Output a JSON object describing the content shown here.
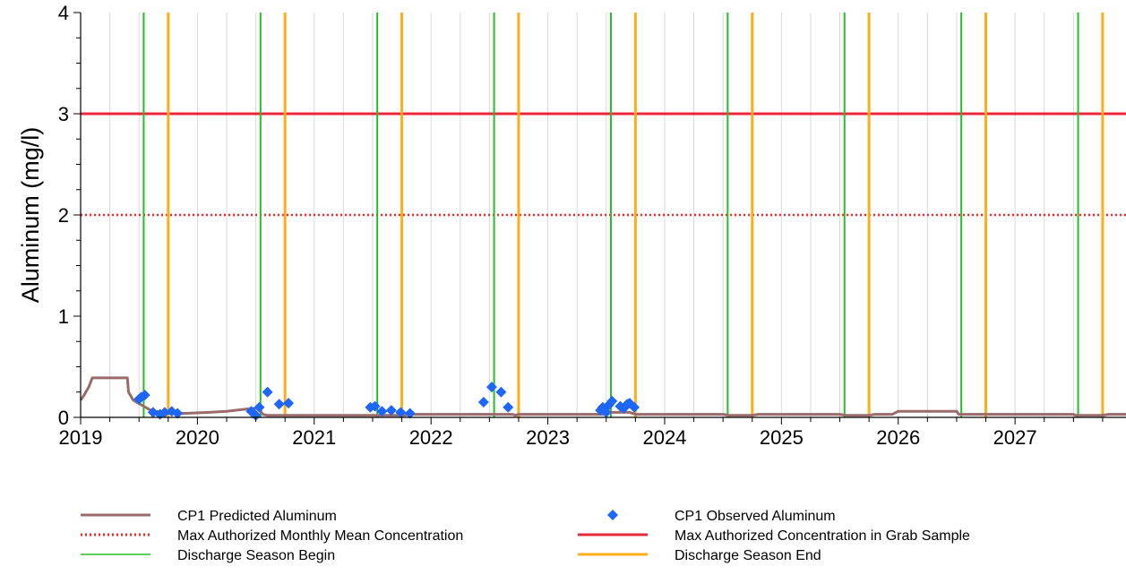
{
  "chart_data": {
    "type": "line",
    "title": "",
    "xlabel": "",
    "ylabel": "Aluminum (mg/l)",
    "xlim": [
      2019.0,
      2027.95
    ],
    "ylim": [
      0,
      4
    ],
    "x_ticks": [
      2019,
      2020,
      2021,
      2022,
      2023,
      2024,
      2025,
      2026,
      2027
    ],
    "x_tick_labels": [
      "2019",
      "2020",
      "2021",
      "2022",
      "2023",
      "2024",
      "2025",
      "2026",
      "2027"
    ],
    "y_ticks": [
      0,
      1,
      2,
      3,
      4
    ],
    "y_tick_labels": [
      "0",
      "1",
      "2",
      "3",
      "4"
    ],
    "grid": true,
    "legend_position": "bottom",
    "colors": {
      "predicted": "#9b6b6b",
      "observed": "#1e66f5",
      "monthly_mean": "#ff2020",
      "grab_sample": "#e8283a",
      "season_begin": "#22c022",
      "season_end": "#ffad1a",
      "grid": "#d9d9d9"
    },
    "series": [
      {
        "name": "CP1 Predicted Aluminum",
        "kind": "line",
        "color_key": "predicted",
        "points": [
          [
            2019.0,
            0.17
          ],
          [
            2019.03,
            0.22
          ],
          [
            2019.07,
            0.3
          ],
          [
            2019.1,
            0.39
          ],
          [
            2019.4,
            0.39
          ],
          [
            2019.41,
            0.25
          ],
          [
            2019.45,
            0.17
          ],
          [
            2019.6,
            0.07
          ],
          [
            2019.75,
            0.04
          ],
          [
            2019.9,
            0.04
          ],
          [
            2020.1,
            0.05
          ],
          [
            2020.25,
            0.06
          ],
          [
            2020.4,
            0.08
          ],
          [
            2020.5,
            0.09
          ],
          [
            2020.52,
            0.1
          ],
          [
            2020.56,
            0.03
          ],
          [
            2020.6,
            0.02
          ],
          [
            2021.0,
            0.02
          ],
          [
            2021.5,
            0.02
          ],
          [
            2021.78,
            0.02
          ],
          [
            2021.8,
            0.03
          ],
          [
            2022.0,
            0.03
          ],
          [
            2022.7,
            0.03
          ],
          [
            2022.72,
            0.02
          ],
          [
            2022.75,
            0.03
          ],
          [
            2023.5,
            0.03
          ],
          [
            2023.52,
            0.05
          ],
          [
            2023.7,
            0.05
          ],
          [
            2023.75,
            0.03
          ],
          [
            2024.5,
            0.03
          ],
          [
            2024.55,
            0.02
          ],
          [
            2024.75,
            0.02
          ],
          [
            2024.8,
            0.03
          ],
          [
            2025.0,
            0.03
          ],
          [
            2025.5,
            0.03
          ],
          [
            2025.55,
            0.02
          ],
          [
            2025.75,
            0.02
          ],
          [
            2025.8,
            0.03
          ],
          [
            2025.95,
            0.03
          ],
          [
            2026.0,
            0.06
          ],
          [
            2026.5,
            0.06
          ],
          [
            2026.52,
            0.03
          ],
          [
            2027.5,
            0.03
          ],
          [
            2027.52,
            0.02
          ],
          [
            2027.75,
            0.02
          ],
          [
            2027.8,
            0.03
          ],
          [
            2027.95,
            0.03
          ]
        ]
      },
      {
        "name": "CP1 Observed  Aluminum",
        "kind": "scatter",
        "color_key": "observed",
        "points": [
          [
            2019.5,
            0.18
          ],
          [
            2019.52,
            0.2
          ],
          [
            2019.55,
            0.22
          ],
          [
            2019.62,
            0.05
          ],
          [
            2019.68,
            0.03
          ],
          [
            2019.72,
            0.05
          ],
          [
            2019.78,
            0.06
          ],
          [
            2019.83,
            0.04
          ],
          [
            2020.46,
            0.06
          ],
          [
            2020.48,
            0.04
          ],
          [
            2020.5,
            0.02
          ],
          [
            2020.53,
            0.1
          ],
          [
            2020.6,
            0.25
          ],
          [
            2020.7,
            0.13
          ],
          [
            2020.78,
            0.14
          ],
          [
            2021.48,
            0.1
          ],
          [
            2021.52,
            0.11
          ],
          [
            2021.58,
            0.06
          ],
          [
            2021.66,
            0.07
          ],
          [
            2021.74,
            0.05
          ],
          [
            2021.82,
            0.04
          ],
          [
            2022.45,
            0.15
          ],
          [
            2022.52,
            0.3
          ],
          [
            2022.6,
            0.25
          ],
          [
            2022.66,
            0.1
          ],
          [
            2023.45,
            0.07
          ],
          [
            2023.47,
            0.1
          ],
          [
            2023.5,
            0.05
          ],
          [
            2023.52,
            0.12
          ],
          [
            2023.55,
            0.16
          ],
          [
            2023.62,
            0.11
          ],
          [
            2023.65,
            0.09
          ],
          [
            2023.68,
            0.13
          ],
          [
            2023.7,
            0.14
          ],
          [
            2023.74,
            0.1
          ]
        ]
      },
      {
        "name": "Max Authorized Monthly Mean Concentration",
        "kind": "hline",
        "style": "dotted",
        "color_key": "monthly_mean",
        "value": 2
      },
      {
        "name": "Max Authorized Concentration in Grab Sample",
        "kind": "hline",
        "style": "solid",
        "color_key": "grab_sample",
        "value": 3
      },
      {
        "name": "Discharge Season Begin",
        "kind": "vlines",
        "color_key": "season_begin",
        "values": [
          2019.54,
          2020.54,
          2021.54,
          2022.54,
          2023.54,
          2024.54,
          2025.54,
          2026.54,
          2027.54
        ]
      },
      {
        "name": "Discharge Season End",
        "kind": "vlines",
        "color_key": "season_end",
        "values": [
          2019.75,
          2020.75,
          2021.75,
          2022.75,
          2023.75,
          2024.75,
          2025.75,
          2026.75,
          2027.75
        ]
      }
    ],
    "legend": [
      {
        "label": "CP1 Predicted Aluminum",
        "symbol": "line",
        "color_key": "predicted"
      },
      {
        "label": "CP1 Observed  Aluminum",
        "symbol": "diamond",
        "color_key": "observed"
      },
      {
        "label": "Max Authorized Monthly Mean Concentration",
        "symbol": "dotted",
        "color_key": "monthly_mean"
      },
      {
        "label": "Max Authorized Concentration in Grab Sample",
        "symbol": "line",
        "color_key": "grab_sample"
      },
      {
        "label": "Discharge Season Begin",
        "symbol": "thin-line",
        "color_key": "season_begin"
      },
      {
        "label": "Discharge Season End",
        "symbol": "line",
        "color_key": "season_end"
      }
    ]
  }
}
